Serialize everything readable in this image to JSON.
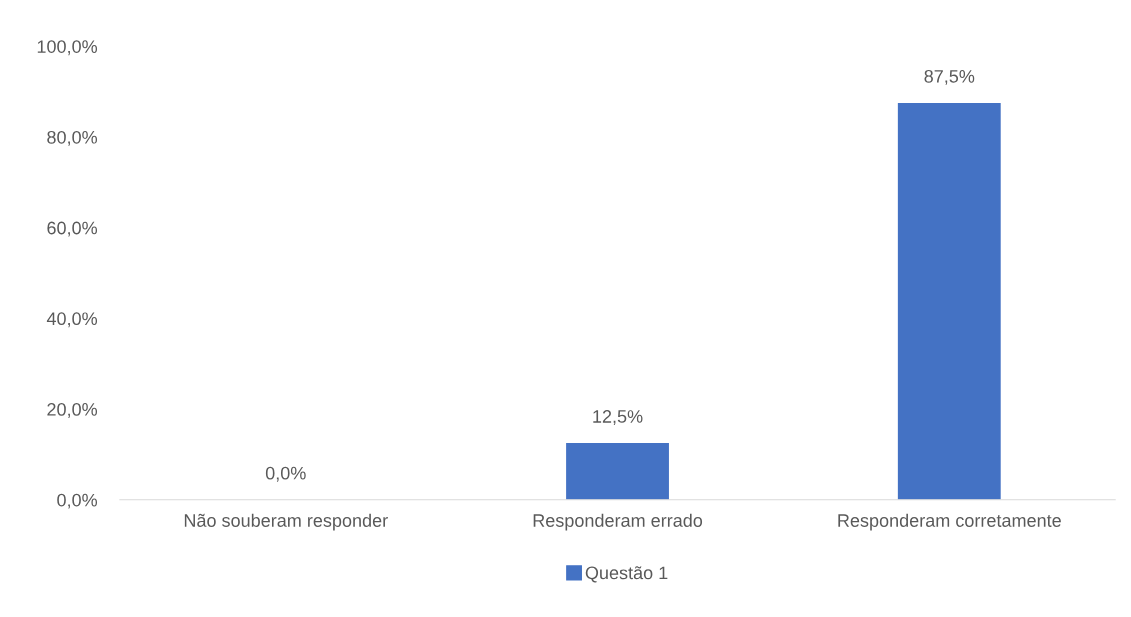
{
  "chart_data": {
    "type": "bar",
    "categories": [
      "Não souberam responder",
      "Responderam errado",
      "Responderam corretamente"
    ],
    "series": [
      {
        "name": "Questão 1",
        "color": "#4472c4",
        "values": [
          0,
          12.5,
          87.5
        ],
        "value_labels": [
          "0,0%",
          "12,5%",
          "87,5%"
        ]
      }
    ],
    "ylim": [
      0,
      100
    ],
    "yticks": [
      {
        "value": 0,
        "label": "0,0%"
      },
      {
        "value": 20,
        "label": "20,0%"
      },
      {
        "value": 40,
        "label": "40,0%"
      },
      {
        "value": 60,
        "label": "60,0%"
      },
      {
        "value": 80,
        "label": "80,0%"
      },
      {
        "value": 100,
        "label": "100,0%"
      }
    ],
    "grid": false,
    "legend": "bottom"
  }
}
